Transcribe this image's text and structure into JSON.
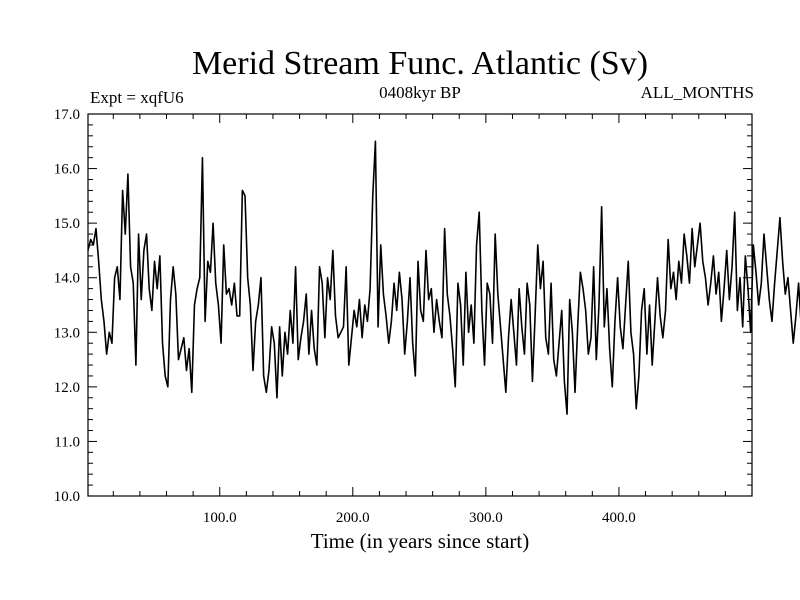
{
  "chart_data": {
    "type": "line",
    "title": "Merid Stream Func. Atlantic (Sv)",
    "subtitle_left": "Expt = xqfU6",
    "subtitle_center": "0408kyr BP",
    "subtitle_right": "ALL_MONTHS",
    "xlabel": "Time (in years since start)",
    "ylabel": "",
    "xlim": [
      1,
      500
    ],
    "ylim": [
      10.0,
      17.0
    ],
    "x_ticks": [
      100,
      200,
      300,
      400
    ],
    "x_tick_labels": [
      "100.0",
      "200.0",
      "300.0",
      "400.0"
    ],
    "y_ticks": [
      10,
      11,
      12,
      13,
      14,
      15,
      16,
      17
    ],
    "y_tick_labels": [
      "10.0",
      "11.0",
      "12.0",
      "13.0",
      "14.0",
      "15.0",
      "16.0",
      "17.0"
    ],
    "grid": false,
    "series": [
      {
        "name": "Merid Stream Func. Atlantic",
        "color": "#000000",
        "x_start": 1,
        "x_step": 2,
        "values": [
          14.5,
          14.7,
          14.6,
          14.9,
          14.3,
          13.6,
          13.2,
          12.6,
          13.0,
          12.8,
          14.0,
          14.2,
          13.6,
          15.6,
          14.8,
          15.9,
          14.2,
          13.9,
          12.4,
          14.8,
          13.6,
          14.5,
          14.8,
          13.8,
          13.4,
          14.3,
          13.8,
          14.4,
          12.8,
          12.2,
          12.0,
          13.6,
          14.2,
          13.7,
          12.5,
          12.7,
          12.9,
          12.3,
          12.7,
          11.9,
          13.5,
          13.8,
          14.0,
          16.2,
          13.2,
          14.3,
          14.1,
          15.0,
          13.9,
          13.5,
          12.8,
          14.6,
          13.7,
          13.8,
          13.5,
          13.9,
          13.3,
          13.3,
          15.6,
          15.5,
          14.0,
          13.5,
          12.3,
          13.2,
          13.5,
          14.0,
          12.2,
          11.9,
          12.3,
          13.1,
          12.8,
          11.8,
          13.1,
          12.2,
          13.0,
          12.6,
          13.4,
          12.8,
          14.2,
          12.5,
          12.9,
          13.2,
          13.7,
          12.6,
          13.4,
          12.7,
          12.4,
          14.2,
          13.9,
          12.9,
          14.0,
          13.6,
          14.5,
          13.3,
          12.9,
          13.0,
          13.1,
          14.2,
          12.4,
          12.9,
          13.4,
          13.1,
          13.6,
          12.9,
          13.5,
          13.2,
          13.8,
          15.5,
          16.5,
          13.1,
          14.6,
          13.7,
          13.3,
          12.8,
          13.2,
          13.9,
          13.4,
          14.1,
          13.6,
          12.6,
          13.2,
          14.0,
          12.8,
          12.2,
          14.3,
          13.4,
          13.2,
          14.5,
          13.6,
          13.8,
          13.0,
          13.6,
          13.2,
          12.9,
          14.9,
          13.7,
          13.3,
          12.7,
          12.0,
          13.9,
          13.5,
          12.4,
          14.1,
          13.0,
          13.5,
          12.8,
          14.6,
          15.2,
          13.4,
          12.4,
          13.9,
          13.7,
          12.8,
          14.8,
          13.7,
          13.1,
          12.5,
          11.9,
          12.9,
          13.6,
          13.0,
          12.4,
          13.8,
          13.1,
          12.6,
          13.9,
          13.5,
          12.1,
          13.3,
          14.6,
          13.8,
          14.3,
          12.9,
          12.6,
          13.9,
          12.5,
          12.2,
          12.8,
          13.4,
          12.1,
          11.5,
          13.6,
          13.0,
          11.9,
          13.1,
          14.1,
          13.8,
          13.4,
          12.6,
          12.9,
          14.2,
          12.5,
          13.5,
          15.3,
          13.1,
          13.8,
          12.7,
          12.0,
          13.2,
          14.0,
          13.1,
          12.7,
          13.5,
          14.3,
          13.0,
          12.6,
          11.6,
          12.2,
          13.4,
          13.8,
          12.6,
          13.5,
          12.4,
          13.2,
          14.0,
          13.3,
          12.9,
          13.4,
          14.7,
          13.8,
          14.1,
          13.6,
          14.3,
          13.9,
          14.8,
          14.4,
          13.9,
          14.9,
          14.2,
          14.6,
          15.0,
          14.3,
          14.0,
          13.5,
          13.9,
          14.4,
          13.7,
          14.1,
          13.2,
          13.8,
          14.5,
          13.6,
          14.2,
          15.2,
          13.4,
          14.0,
          13.1,
          14.4,
          13.8,
          13.0,
          14.6,
          14.1,
          13.5,
          13.9,
          14.8,
          14.2,
          13.6,
          13.2,
          13.9,
          14.5,
          15.1,
          14.3,
          13.7,
          14.0,
          13.4,
          12.8,
          13.3,
          13.9,
          13.1,
          12.9,
          13.6,
          14.2,
          13.3,
          15.2,
          14.1,
          13.5,
          12.6,
          13.8,
          13.0,
          12.2,
          11.8,
          12.9,
          13.4,
          13.2,
          12.5,
          12.1,
          13.1,
          12.3,
          12.8,
          11.2,
          12.4,
          13.5,
          12.0,
          12.6,
          13.2,
          11.6,
          13.9,
          12.8,
          12.1,
          14.0,
          13.3,
          12.2,
          12.8,
          11.4,
          13.0,
          12.0,
          13.6,
          12.4,
          12.1,
          14.6
        ]
      }
    ]
  }
}
